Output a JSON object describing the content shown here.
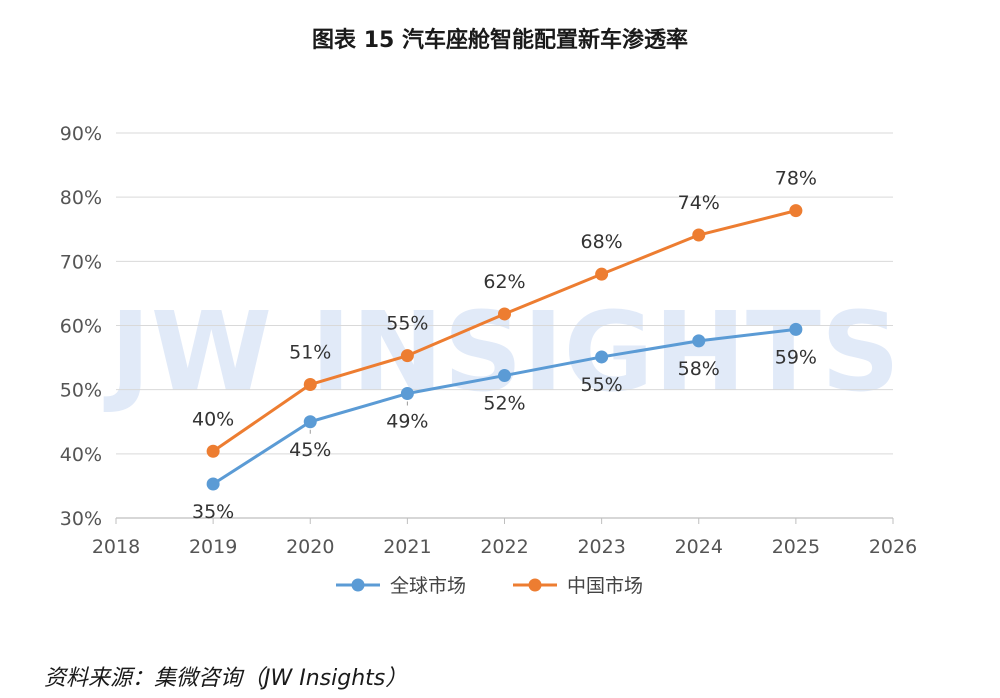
{
  "chart_data": {
    "type": "line",
    "title": "图表 15  汽车座舱智能配置新车渗透率",
    "watermark": "JW INSIGHTS",
    "xlim": [
      2018,
      2026
    ],
    "ylim": [
      30,
      90
    ],
    "x_ticks": [
      2018,
      2019,
      2020,
      2021,
      2022,
      2023,
      2024,
      2025,
      2026
    ],
    "y_ticks": [
      30,
      40,
      50,
      60,
      70,
      80,
      90
    ],
    "y_tick_labels": [
      "30%",
      "40%",
      "50%",
      "60%",
      "70%",
      "80%",
      "90%"
    ],
    "grid": "horizontal",
    "legend_position": "bottom",
    "series": [
      {
        "name": "全球市场",
        "color": "#5b9bd5",
        "x": [
          2019,
          2020,
          2021,
          2022,
          2023,
          2024,
          2025
        ],
        "values": [
          35.3,
          45,
          49.4,
          52.2,
          55.1,
          57.6,
          59.4
        ],
        "labels": [
          "35%",
          "45%",
          "49%",
          "52%",
          "55%",
          "58%",
          "59%"
        ]
      },
      {
        "name": "中国市场",
        "color": "#ed7d31",
        "x": [
          2019,
          2020,
          2021,
          2022,
          2023,
          2024,
          2025
        ],
        "values": [
          40.4,
          50.8,
          55.3,
          61.8,
          68,
          74.1,
          77.9
        ],
        "labels": [
          "40%",
          "51%",
          "55%",
          "62%",
          "68%",
          "74%",
          "78%"
        ]
      }
    ]
  },
  "source_note": "资料来源：集微咨询（JW Insights）"
}
